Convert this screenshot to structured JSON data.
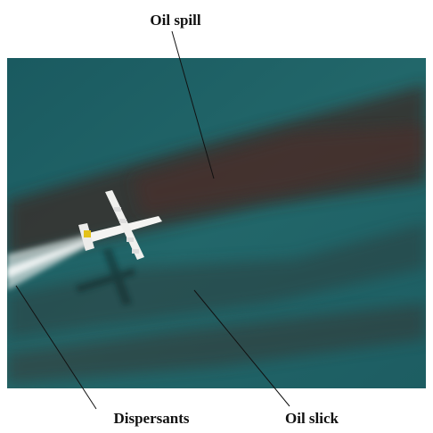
{
  "annotations": [
    {
      "label": "Oil spill"
    },
    {
      "label": "Dispersants"
    },
    {
      "label": "Oil slick"
    }
  ]
}
